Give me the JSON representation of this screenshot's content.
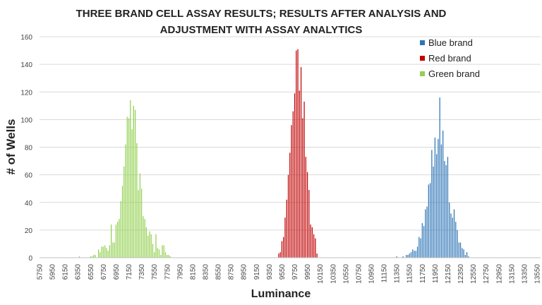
{
  "chart_data": {
    "type": "bar",
    "title_lines": [
      "THREE BRAND CELL ASSAY RESULTS; RESULTS AFTER ANALYSIS AND",
      "ADJUSTMENT WITH ASSAY ANALYTICS"
    ],
    "xlabel": "Luminance",
    "ylabel": "# of Wells",
    "ylim": [
      0,
      160
    ],
    "yticks": [
      0,
      20,
      40,
      60,
      80,
      100,
      120,
      140,
      160
    ],
    "xlim": [
      5750,
      13550
    ],
    "bin_width": 25,
    "xticks": [
      5750,
      5950,
      6150,
      6350,
      6550,
      6750,
      6950,
      7150,
      7350,
      7550,
      7750,
      7950,
      8150,
      8350,
      8550,
      8750,
      8950,
      9150,
      9350,
      9550,
      9750,
      9950,
      10150,
      10350,
      10550,
      10750,
      10950,
      11150,
      11350,
      11550,
      11750,
      11950,
      12150,
      12350,
      12550,
      12750,
      12950,
      13150,
      13350,
      13550
    ],
    "grid": true,
    "legend_position": "top-right",
    "series": [
      {
        "name": "Blue brand",
        "color": "#2e75b6",
        "x_start": 11350,
        "values": [
          1,
          0,
          0,
          0,
          1,
          0,
          2,
          2,
          3,
          4,
          6,
          5,
          5,
          8,
          15,
          14,
          25,
          23,
          35,
          37,
          53,
          54,
          78,
          66,
          87,
          75,
          86,
          116,
          82,
          92,
          70,
          67,
          73,
          40,
          32,
          29,
          35,
          26,
          20,
          11,
          11,
          7,
          6,
          2,
          4,
          1
        ]
      },
      {
        "name": "Red brand",
        "color": "#c00000",
        "x_start": 9500,
        "values": [
          3,
          4,
          12,
          15,
          29,
          42,
          60,
          76,
          96,
          106,
          119,
          150,
          151,
          121,
          138,
          101,
          113,
          73,
          62,
          49,
          24,
          22,
          17,
          14,
          3
        ]
      },
      {
        "name": "Green brand",
        "color": "#92d050",
        "x_start": 6375,
        "values": [
          1,
          0,
          0,
          0,
          0,
          0,
          0,
          1,
          1,
          2,
          2,
          0,
          6,
          4,
          8,
          8,
          9,
          7,
          5,
          9,
          24,
          11,
          11,
          24,
          26,
          28,
          41,
          52,
          66,
          82,
          102,
          101,
          114,
          93,
          110,
          107,
          83,
          49,
          61,
          50,
          30,
          28,
          22,
          16,
          19,
          17,
          10,
          4,
          17,
          7,
          6,
          2,
          9,
          9,
          4,
          2,
          2,
          1
        ]
      }
    ]
  }
}
